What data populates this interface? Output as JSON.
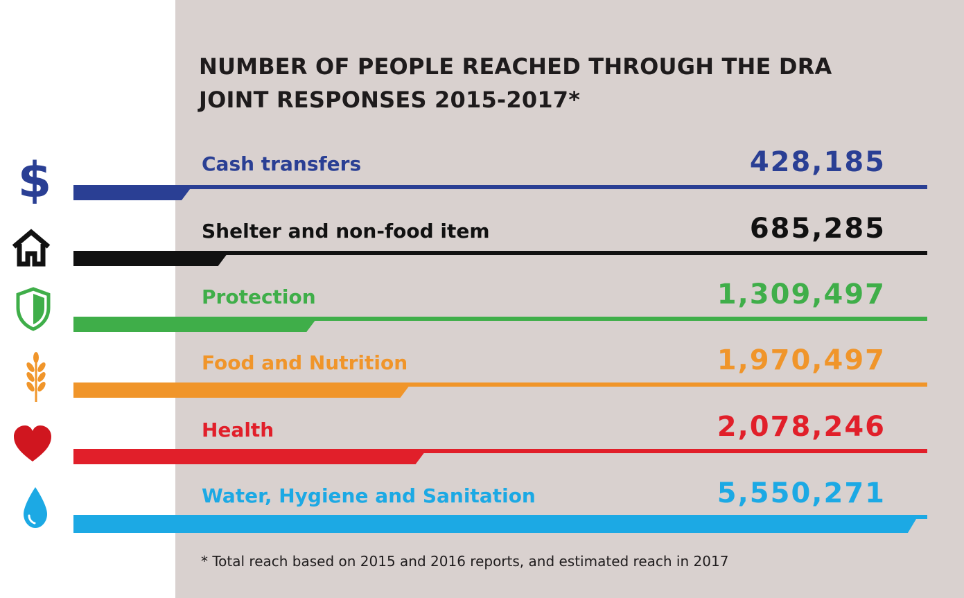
{
  "title": "NUMBER OF PEOPLE REACHED THROUGH THE DRA JOINT RESPONSES 2015-2017*",
  "footnote": "* Total reach based on 2015 and 2016 reports, and estimated reach in 2017",
  "chart_data": {
    "type": "bar",
    "title": "NUMBER OF PEOPLE REACHED THROUGH THE DRA JOINT RESPONSES 2015-2017*",
    "categories": [
      "Cash transfers",
      "Shelter and non-food item",
      "Protection",
      "Food and Nutrition",
      "Health",
      "Water, Hygiene and Sanitation"
    ],
    "values": [
      428185,
      685285,
      1309497,
      1970497,
      2078246,
      5550271
    ],
    "value_labels": [
      "428,185",
      "685,285",
      "1,309,497",
      "1,970,497",
      "2,078,246",
      "5,550,271"
    ],
    "colors": [
      "#2a3f94",
      "#111111",
      "#3fae49",
      "#f0952a",
      "#e11f2a",
      "#1ca9e4"
    ],
    "icons": [
      "dollar-icon",
      "house-icon",
      "shield-icon",
      "wheat-icon",
      "heart-icon",
      "water-drop-icon"
    ],
    "ylim": [
      0,
      5550271
    ]
  }
}
